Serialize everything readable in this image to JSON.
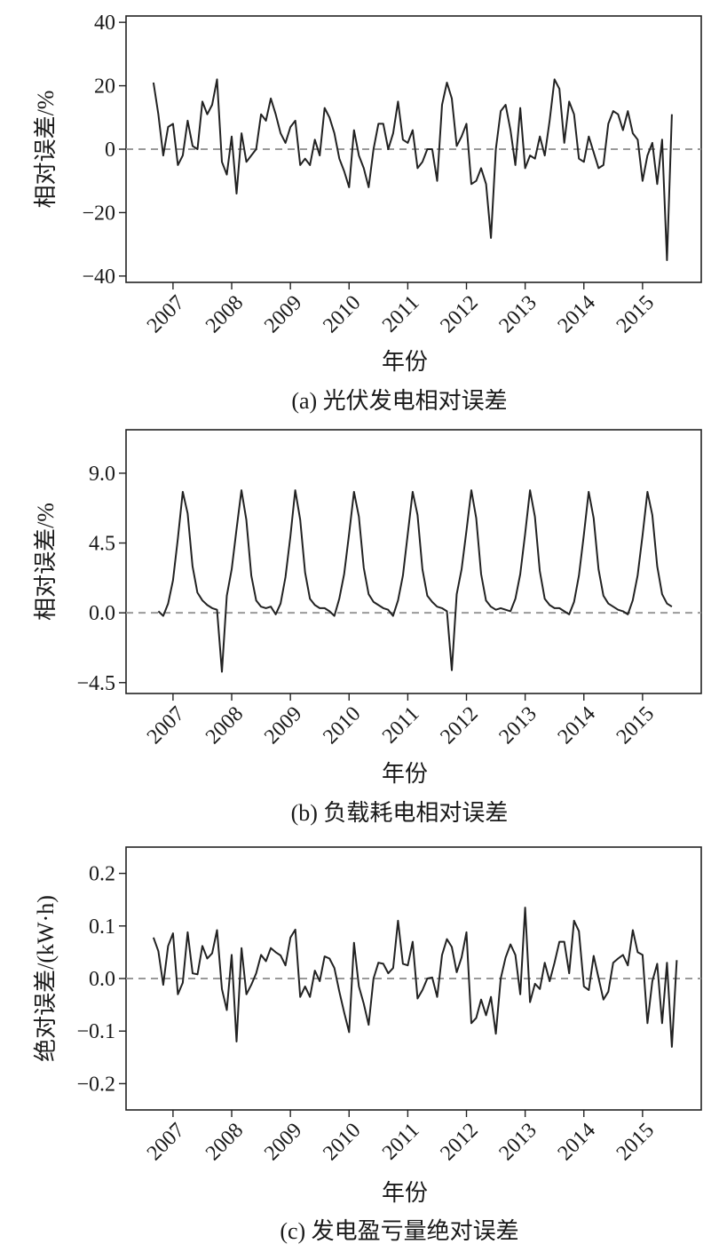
{
  "chart_data": [
    {
      "type": "line",
      "caption": "(a) 光伏发电相对误差",
      "xlabel": "年份",
      "ylabel": "相对误差/%",
      "xlim": [
        2006.2,
        2016.0
      ],
      "ylim": [
        -42,
        42
      ],
      "xticks": [
        2007,
        2008,
        2009,
        2010,
        2011,
        2012,
        2013,
        2014,
        2015
      ],
      "xtick_labels": [
        "2007",
        "2008",
        "2009",
        "2010",
        "2011",
        "2012",
        "2013",
        "2014",
        "2015"
      ],
      "yticks": [
        40,
        20,
        0,
        -20,
        -40
      ],
      "ytick_labels": [
        "40",
        "20",
        "0",
        "−20",
        "−40"
      ],
      "reference_line": 0,
      "x_start": 2006.667,
      "x_step": 0.08333,
      "values": [
        21,
        11,
        -2,
        7,
        8,
        -5,
        -2,
        9,
        1,
        0,
        15,
        11,
        14,
        22,
        -4,
        -8,
        4,
        -14,
        5,
        -4,
        -2,
        0,
        11,
        9,
        16,
        11,
        5,
        2,
        7,
        9,
        -5,
        -3,
        -5,
        3,
        -2,
        13,
        10,
        5,
        -3,
        -7,
        -12,
        6,
        -2,
        -6,
        -12,
        0,
        8,
        8,
        0,
        5,
        15,
        3,
        2,
        6,
        -6,
        -4,
        0,
        0,
        -10,
        14,
        21,
        16,
        1,
        4,
        8,
        -11,
        -10,
        -6,
        -11,
        -28,
        0,
        12,
        14,
        6,
        -5,
        13,
        -6,
        -2,
        -3,
        4,
        -2,
        9,
        22,
        19,
        2,
        15,
        11,
        -3,
        -4,
        4,
        -1,
        -6,
        -5,
        8,
        12,
        11,
        6,
        12,
        5,
        3,
        -10,
        -2,
        2,
        -11,
        3,
        -35,
        11
      ]
    },
    {
      "type": "line",
      "caption": "(b) 负载耗电相对误差",
      "xlabel": "年份",
      "ylabel": "相对误差/%",
      "xlim": [
        2006.2,
        2016.0
      ],
      "ylim": [
        -5.2,
        11.8
      ],
      "xticks": [
        2007,
        2008,
        2009,
        2010,
        2011,
        2012,
        2013,
        2014,
        2015
      ],
      "xtick_labels": [
        "2007",
        "2008",
        "2009",
        "2010",
        "2011",
        "2012",
        "2013",
        "2014",
        "2015"
      ],
      "yticks": [
        9.0,
        4.5,
        0.0,
        -4.5
      ],
      "ytick_labels": [
        "9.0",
        "4.5",
        "0.0",
        "−4.5"
      ],
      "reference_line": 0,
      "x_start": 2006.75,
      "x_step": 0.08333,
      "values": [
        0.1,
        -0.2,
        0.6,
        2.1,
        4.8,
        7.8,
        6.4,
        3.0,
        1.3,
        0.8,
        0.5,
        0.3,
        0.2,
        -3.8,
        1.1,
        2.8,
        5.4,
        7.9,
        6.0,
        2.4,
        0.8,
        0.4,
        0.3,
        0.4,
        -0.1,
        0.6,
        2.3,
        4.9,
        7.9,
        6.0,
        2.6,
        0.9,
        0.5,
        0.3,
        0.3,
        0.1,
        -0.2,
        0.9,
        2.5,
        5.1,
        7.8,
        6.2,
        2.9,
        1.2,
        0.7,
        0.5,
        0.3,
        0.2,
        -0.2,
        0.8,
        2.4,
        5.1,
        7.8,
        6.3,
        2.8,
        1.1,
        0.7,
        0.4,
        0.3,
        0.1,
        -3.7,
        1.2,
        2.8,
        5.3,
        7.9,
        6.1,
        2.5,
        0.8,
        0.4,
        0.2,
        0.3,
        0.2,
        0.1,
        0.9,
        2.5,
        5.1,
        7.9,
        6.2,
        2.7,
        0.9,
        0.5,
        0.3,
        0.3,
        0.1,
        -0.1,
        0.7,
        2.4,
        5.0,
        7.8,
        6.1,
        2.8,
        1.1,
        0.6,
        0.4,
        0.2,
        0.1,
        -0.1,
        0.8,
        2.4,
        5.0,
        7.8,
        6.3,
        3.0,
        1.2,
        0.6,
        0.4
      ]
    },
    {
      "type": "line",
      "caption": "(c) 发电盈亏量绝对误差",
      "xlabel": "年份",
      "ylabel": "绝对误差/(kW·h)",
      "xlim": [
        2006.2,
        2016.0
      ],
      "ylim": [
        -0.25,
        0.25
      ],
      "xticks": [
        2007,
        2008,
        2009,
        2010,
        2011,
        2012,
        2013,
        2014,
        2015
      ],
      "xtick_labels": [
        "2007",
        "2008",
        "2009",
        "2010",
        "2011",
        "2012",
        "2013",
        "2014",
        "2015"
      ],
      "yticks": [
        0.2,
        0.1,
        0.0,
        -0.1,
        -0.2
      ],
      "ytick_labels": [
        "0.2",
        "0.1",
        "0.0",
        "−0.1",
        "−0.2"
      ],
      "reference_line": 0,
      "x_start": 2006.667,
      "x_step": 0.08333,
      "values": [
        0.078,
        0.052,
        -0.012,
        0.062,
        0.086,
        -0.03,
        -0.008,
        0.088,
        0.01,
        0.008,
        0.062,
        0.038,
        0.048,
        0.092,
        -0.02,
        -0.06,
        0.045,
        -0.12,
        0.058,
        -0.03,
        -0.012,
        0.01,
        0.045,
        0.033,
        0.058,
        0.05,
        0.044,
        0.025,
        0.078,
        0.093,
        -0.035,
        -0.015,
        -0.035,
        0.015,
        -0.005,
        0.042,
        0.038,
        0.02,
        -0.025,
        -0.065,
        -0.102,
        0.068,
        -0.015,
        -0.048,
        -0.088,
        0,
        0.03,
        0.028,
        0.01,
        0.02,
        0.11,
        0.028,
        0.025,
        0.07,
        -0.038,
        -0.022,
        0,
        0.002,
        -0.035,
        0.045,
        0.075,
        0.06,
        0.012,
        0.04,
        0.088,
        -0.085,
        -0.075,
        -0.04,
        -0.07,
        -0.035,
        -0.105,
        0,
        0.04,
        0.065,
        0.045,
        -0.03,
        0.135,
        -0.045,
        -0.01,
        -0.02,
        0.03,
        -0.005,
        0.03,
        0.07,
        0.07,
        0.01,
        0.11,
        0.09,
        -0.015,
        -0.022,
        0.043,
        0.001,
        -0.04,
        -0.025,
        0.03,
        0.038,
        0.045,
        0.025,
        0.092,
        0.05,
        0.045,
        -0.085,
        -0.005,
        0.028,
        -0.085,
        0.03,
        -0.13,
        0.035
      ]
    }
  ]
}
